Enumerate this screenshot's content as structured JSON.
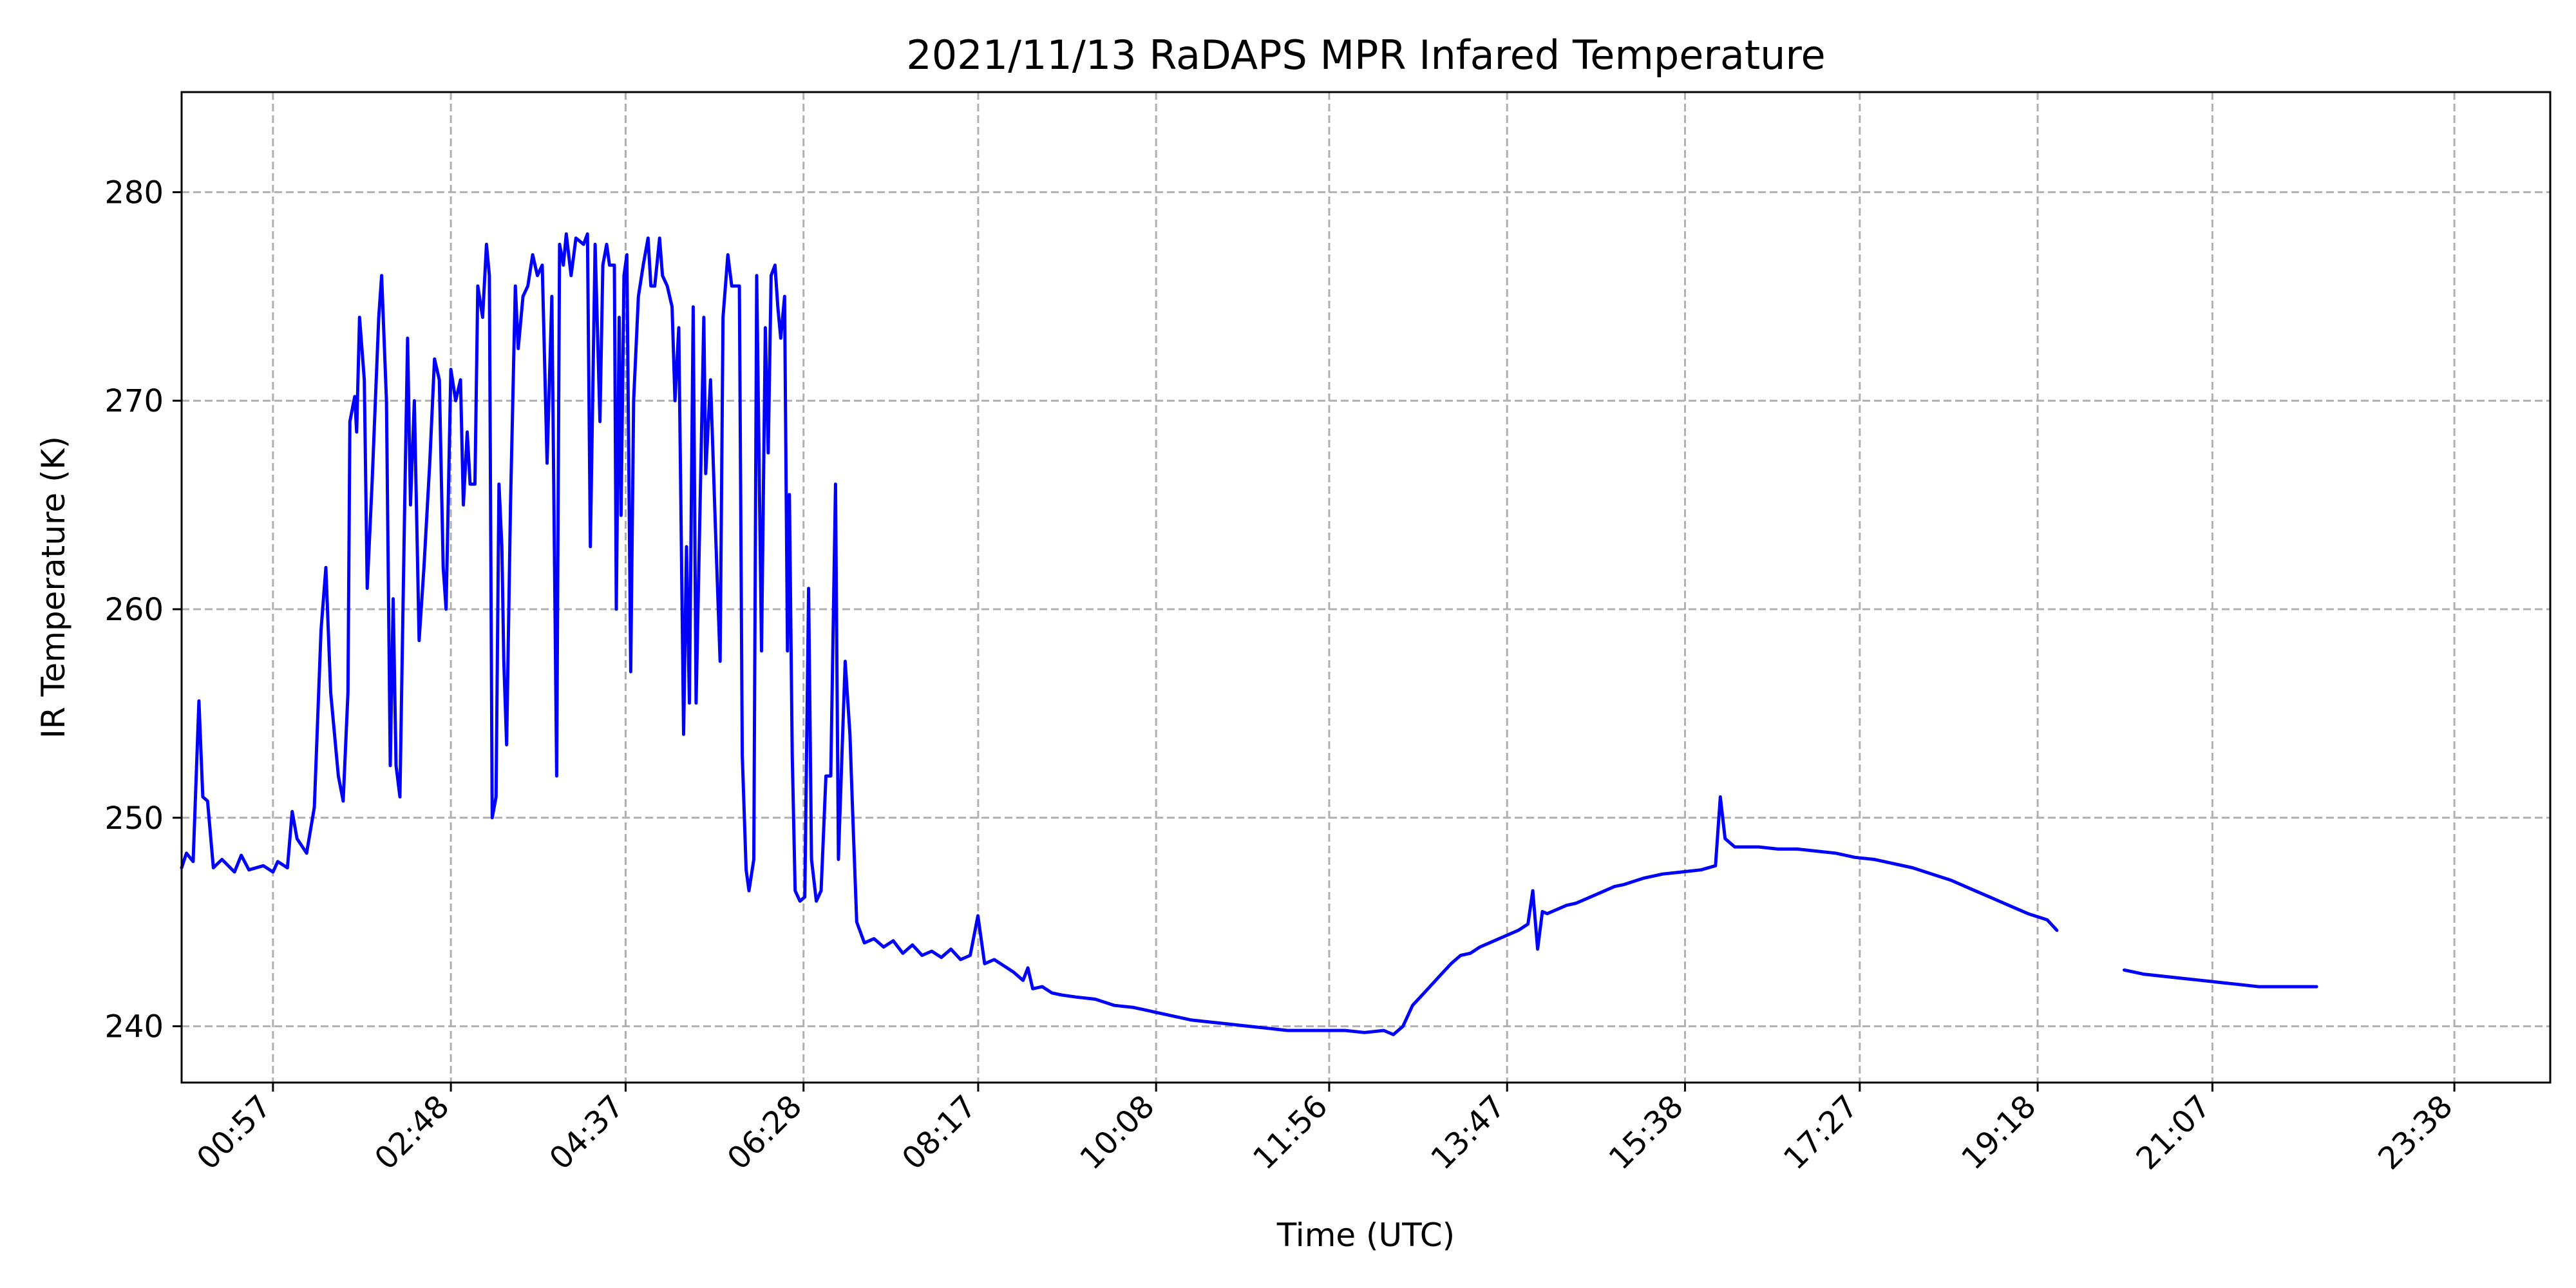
{
  "chart_data": {
    "type": "line",
    "title": "2021/11/13 RaDAPS MPR Infared Temperature",
    "xlabel": "Time (UTC)",
    "ylabel": "IR Temperature (K)",
    "x_unit": "hours UTC",
    "xlim": [
      0.0,
      24.63
    ],
    "ylim": [
      237.3,
      284.8
    ],
    "x_ticks": [
      {
        "value": 0.95,
        "label": "00:57"
      },
      {
        "value": 2.8,
        "label": "02:48"
      },
      {
        "value": 4.617,
        "label": "04:37"
      },
      {
        "value": 6.467,
        "label": "06:28"
      },
      {
        "value": 8.283,
        "label": "08:17"
      },
      {
        "value": 10.133,
        "label": "10:08"
      },
      {
        "value": 11.933,
        "label": "11:56"
      },
      {
        "value": 13.783,
        "label": "13:47"
      },
      {
        "value": 15.633,
        "label": "15:38"
      },
      {
        "value": 17.45,
        "label": "17:27"
      },
      {
        "value": 19.3,
        "label": "19:18"
      },
      {
        "value": 21.117,
        "label": "21:07"
      },
      {
        "value": 23.633,
        "label": "23:38"
      }
    ],
    "y_ticks": [
      {
        "value": 240,
        "label": "240"
      },
      {
        "value": 250,
        "label": "250"
      },
      {
        "value": 260,
        "label": "260"
      },
      {
        "value": 270,
        "label": "270"
      },
      {
        "value": 280,
        "label": "280"
      }
    ],
    "grid": true,
    "series": [
      {
        "color": "#0000ff",
        "segments": [
          [
            [
              0.0,
              247.6
            ],
            [
              0.05,
              248.3
            ],
            [
              0.12,
              247.9
            ],
            [
              0.18,
              255.6
            ],
            [
              0.22,
              251.0
            ],
            [
              0.27,
              250.8
            ],
            [
              0.33,
              247.6
            ],
            [
              0.42,
              248.0
            ],
            [
              0.55,
              247.4
            ],
            [
              0.62,
              248.2
            ],
            [
              0.7,
              247.5
            ],
            [
              0.85,
              247.7
            ],
            [
              0.95,
              247.4
            ],
            [
              1.0,
              247.9
            ],
            [
              1.1,
              247.6
            ],
            [
              1.15,
              250.3
            ],
            [
              1.2,
              249.0
            ],
            [
              1.3,
              248.3
            ],
            [
              1.38,
              250.5
            ],
            [
              1.45,
              259.0
            ],
            [
              1.5,
              262.0
            ],
            [
              1.55,
              256.0
            ],
            [
              1.63,
              252.0
            ],
            [
              1.68,
              250.8
            ],
            [
              1.73,
              256.0
            ],
            [
              1.75,
              269.0
            ],
            [
              1.8,
              270.2
            ],
            [
              1.82,
              268.5
            ],
            [
              1.85,
              274.0
            ],
            [
              1.9,
              271.0
            ],
            [
              1.93,
              261.0
            ],
            [
              1.98,
              266.0
            ],
            [
              2.05,
              274.0
            ],
            [
              2.08,
              276.0
            ],
            [
              2.13,
              270.0
            ],
            [
              2.17,
              252.5
            ],
            [
              2.2,
              260.5
            ],
            [
              2.23,
              252.5
            ],
            [
              2.27,
              251.0
            ],
            [
              2.32,
              265.0
            ],
            [
              2.35,
              273.0
            ],
            [
              2.38,
              265.0
            ],
            [
              2.42,
              270.0
            ],
            [
              2.47,
              258.5
            ],
            [
              2.52,
              262.0
            ],
            [
              2.58,
              267.0
            ],
            [
              2.63,
              272.0
            ],
            [
              2.68,
              271.0
            ],
            [
              2.72,
              262.0
            ],
            [
              2.75,
              260.0
            ],
            [
              2.8,
              271.5
            ],
            [
              2.85,
              270.0
            ],
            [
              2.9,
              271.0
            ],
            [
              2.93,
              265.0
            ],
            [
              2.97,
              268.5
            ],
            [
              3.0,
              266.0
            ],
            [
              3.05,
              266.0
            ],
            [
              3.08,
              275.5
            ],
            [
              3.13,
              274.0
            ],
            [
              3.17,
              277.5
            ],
            [
              3.2,
              276.0
            ],
            [
              3.23,
              250.0
            ],
            [
              3.27,
              251.0
            ],
            [
              3.3,
              266.0
            ],
            [
              3.33,
              263.0
            ],
            [
              3.35,
              257.5
            ],
            [
              3.38,
              253.5
            ],
            [
              3.42,
              265.0
            ],
            [
              3.47,
              275.5
            ],
            [
              3.5,
              272.5
            ],
            [
              3.55,
              275.0
            ],
            [
              3.6,
              275.5
            ],
            [
              3.65,
              277.0
            ],
            [
              3.7,
              276.0
            ],
            [
              3.75,
              276.5
            ],
            [
              3.8,
              267.0
            ],
            [
              3.85,
              275.0
            ],
            [
              3.9,
              252.0
            ],
            [
              3.93,
              277.5
            ],
            [
              3.97,
              276.5
            ],
            [
              4.0,
              278.0
            ],
            [
              4.05,
              276.0
            ],
            [
              4.1,
              277.8
            ],
            [
              4.18,
              277.5
            ],
            [
              4.22,
              278.0
            ],
            [
              4.25,
              263.0
            ],
            [
              4.3,
              277.5
            ],
            [
              4.35,
              269.0
            ],
            [
              4.38,
              276.5
            ],
            [
              4.42,
              277.5
            ],
            [
              4.45,
              276.5
            ],
            [
              4.5,
              276.5
            ],
            [
              4.52,
              260.0
            ],
            [
              4.55,
              274.0
            ],
            [
              4.57,
              264.5
            ],
            [
              4.6,
              276.0
            ],
            [
              4.63,
              277.0
            ],
            [
              4.67,
              257.0
            ],
            [
              4.7,
              270.0
            ],
            [
              4.75,
              275.0
            ],
            [
              4.8,
              276.5
            ],
            [
              4.85,
              277.8
            ],
            [
              4.88,
              275.5
            ],
            [
              4.92,
              275.5
            ],
            [
              4.97,
              277.8
            ],
            [
              5.0,
              276.0
            ],
            [
              5.05,
              275.5
            ],
            [
              5.1,
              274.5
            ],
            [
              5.13,
              270.0
            ],
            [
              5.17,
              273.5
            ],
            [
              5.22,
              254.0
            ],
            [
              5.25,
              263.0
            ],
            [
              5.28,
              255.5
            ],
            [
              5.32,
              274.5
            ],
            [
              5.35,
              255.5
            ],
            [
              5.4,
              267.0
            ],
            [
              5.43,
              274.0
            ],
            [
              5.45,
              266.5
            ],
            [
              5.5,
              271.0
            ],
            [
              5.55,
              264.0
            ],
            [
              5.6,
              257.5
            ],
            [
              5.63,
              274.0
            ],
            [
              5.68,
              277.0
            ],
            [
              5.72,
              275.5
            ],
            [
              5.8,
              275.5
            ],
            [
              5.83,
              253.0
            ],
            [
              5.87,
              247.5
            ],
            [
              5.9,
              246.5
            ],
            [
              5.95,
              248.0
            ],
            [
              5.98,
              276.0
            ],
            [
              6.03,
              258.0
            ],
            [
              6.07,
              273.5
            ],
            [
              6.1,
              267.5
            ],
            [
              6.13,
              276.0
            ],
            [
              6.17,
              276.5
            ],
            [
              6.2,
              274.5
            ],
            [
              6.23,
              273.0
            ],
            [
              6.27,
              275.0
            ],
            [
              6.3,
              258.0
            ],
            [
              6.32,
              265.5
            ],
            [
              6.35,
              253.0
            ],
            [
              6.38,
              246.5
            ],
            [
              6.43,
              246.0
            ],
            [
              6.48,
              246.2
            ],
            [
              6.52,
              261.0
            ],
            [
              6.55,
              248.0
            ],
            [
              6.6,
              246.0
            ],
            [
              6.65,
              246.5
            ],
            [
              6.7,
              252.0
            ],
            [
              6.75,
              252.0
            ],
            [
              6.8,
              266.0
            ],
            [
              6.83,
              248.0
            ],
            [
              6.87,
              253.5
            ],
            [
              6.9,
              257.5
            ],
            [
              6.95,
              254.0
            ],
            [
              6.98,
              250.0
            ],
            [
              7.02,
              245.0
            ],
            [
              7.1,
              244.0
            ],
            [
              7.2,
              244.2
            ],
            [
              7.3,
              243.8
            ],
            [
              7.4,
              244.1
            ],
            [
              7.5,
              243.5
            ],
            [
              7.6,
              243.9
            ],
            [
              7.7,
              243.4
            ],
            [
              7.8,
              243.6
            ],
            [
              7.9,
              243.3
            ],
            [
              8.0,
              243.7
            ],
            [
              8.1,
              243.2
            ],
            [
              8.2,
              243.4
            ],
            [
              8.28,
              245.3
            ],
            [
              8.35,
              243.0
            ],
            [
              8.45,
              243.2
            ],
            [
              8.55,
              242.9
            ],
            [
              8.65,
              242.6
            ],
            [
              8.75,
              242.2
            ],
            [
              8.8,
              242.8
            ],
            [
              8.85,
              241.8
            ],
            [
              8.95,
              241.9
            ],
            [
              9.05,
              241.6
            ],
            [
              9.15,
              241.5
            ],
            [
              9.3,
              241.4
            ],
            [
              9.5,
              241.3
            ],
            [
              9.7,
              241.0
            ],
            [
              9.9,
              240.9
            ],
            [
              10.1,
              240.7
            ],
            [
              10.3,
              240.5
            ],
            [
              10.5,
              240.3
            ],
            [
              10.7,
              240.2
            ],
            [
              10.9,
              240.1
            ],
            [
              11.1,
              240.0
            ],
            [
              11.3,
              239.9
            ],
            [
              11.5,
              239.8
            ],
            [
              11.7,
              239.8
            ],
            [
              11.9,
              239.8
            ],
            [
              12.1,
              239.8
            ],
            [
              12.3,
              239.7
            ],
            [
              12.5,
              239.8
            ],
            [
              12.6,
              239.6
            ],
            [
              12.7,
              240.0
            ],
            [
              12.8,
              241.0
            ],
            [
              12.9,
              241.5
            ],
            [
              13.0,
              242.0
            ],
            [
              13.1,
              242.5
            ],
            [
              13.2,
              243.0
            ],
            [
              13.3,
              243.4
            ],
            [
              13.4,
              243.5
            ],
            [
              13.5,
              243.8
            ],
            [
              13.6,
              244.0
            ],
            [
              13.7,
              244.2
            ],
            [
              13.8,
              244.4
            ],
            [
              13.9,
              244.6
            ],
            [
              14.0,
              244.9
            ],
            [
              14.05,
              246.5
            ],
            [
              14.1,
              243.7
            ],
            [
              14.15,
              245.5
            ],
            [
              14.2,
              245.4
            ],
            [
              14.3,
              245.6
            ],
            [
              14.4,
              245.8
            ],
            [
              14.5,
              245.9
            ],
            [
              14.6,
              246.1
            ],
            [
              14.7,
              246.3
            ],
            [
              14.8,
              246.5
            ],
            [
              14.9,
              246.7
            ],
            [
              15.0,
              246.8
            ],
            [
              15.2,
              247.1
            ],
            [
              15.4,
              247.3
            ],
            [
              15.6,
              247.4
            ],
            [
              15.8,
              247.5
            ],
            [
              15.95,
              247.7
            ],
            [
              16.0,
              251.0
            ],
            [
              16.05,
              249.0
            ],
            [
              16.15,
              248.6
            ],
            [
              16.4,
              248.6
            ],
            [
              16.6,
              248.5
            ],
            [
              16.8,
              248.5
            ],
            [
              17.0,
              248.4
            ],
            [
              17.2,
              248.3
            ],
            [
              17.4,
              248.1
            ],
            [
              17.6,
              248.0
            ],
            [
              17.8,
              247.8
            ],
            [
              18.0,
              247.6
            ],
            [
              18.2,
              247.3
            ],
            [
              18.4,
              247.0
            ],
            [
              18.6,
              246.6
            ],
            [
              18.8,
              246.2
            ],
            [
              19.0,
              245.8
            ],
            [
              19.2,
              245.4
            ],
            [
              19.4,
              245.1
            ],
            [
              19.5,
              244.6
            ]
          ],
          [
            [
              20.2,
              242.7
            ],
            [
              20.4,
              242.5
            ],
            [
              20.6,
              242.4
            ],
            [
              20.8,
              242.3
            ],
            [
              21.0,
              242.2
            ],
            [
              21.2,
              242.1
            ],
            [
              21.4,
              242.0
            ],
            [
              21.6,
              241.9
            ],
            [
              21.8,
              241.9
            ],
            [
              22.0,
              241.9
            ],
            [
              22.2,
              241.9
            ]
          ]
        ]
      }
    ]
  }
}
